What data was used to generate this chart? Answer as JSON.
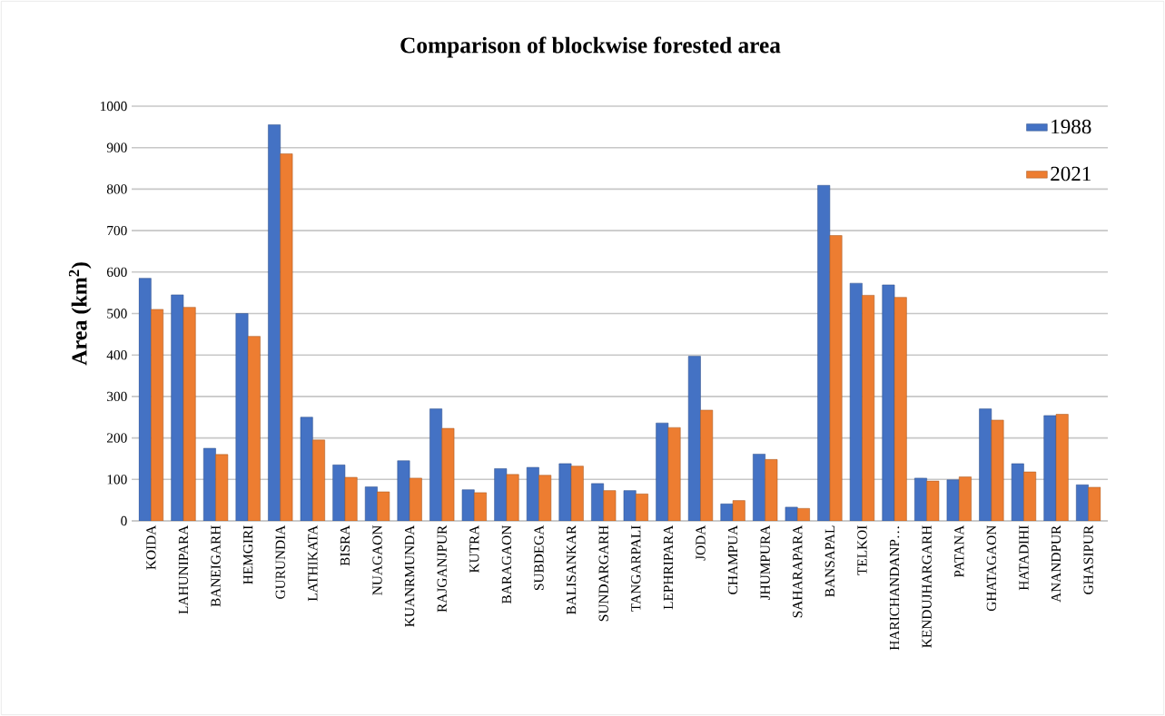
{
  "chart_data": {
    "type": "bar",
    "title": "Comparison of blockwise forested area",
    "ylabel": "**Area (km$^{2}$)**",
    "categories": [
      "KOIDA",
      "LAHUNIPARA",
      "BANEIGARH",
      "HEMGIRI",
      "GURUNDIA",
      "LATHIKATA",
      "BISRA",
      "NUAGAON",
      "KUANRMUNDA",
      "RAJGANJPUR",
      "KUTRA",
      "BARAGAON",
      "SUBDEGA",
      "BALISANKAR",
      "SUNDARGARH",
      "TANGARPALI",
      "LEPHRIPARA",
      "JODA",
      "CHAMPUA",
      "JHUMPURA",
      "SAHARAPARA",
      "BANSAPAL",
      "TELKOI",
      "HARICHANDANP…",
      "KENDUJHARGARH",
      "PATANA",
      "GHATAGAON",
      "HATADIHI",
      "ANANDPUR",
      "GHASIPUR"
    ],
    "series": [
      {
        "name": "1988",
        "color": "#4472c4",
        "values": [
          585,
          545,
          175,
          500,
          955,
          250,
          135,
          82,
          145,
          270,
          75,
          126,
          129,
          138,
          90,
          73,
          236,
          397,
          41,
          161,
          33,
          809,
          573,
          569,
          103,
          99,
          270,
          138,
          254,
          87
        ]
      },
      {
        "name": "2021",
        "color": "#ed7d31",
        "values": [
          510,
          515,
          160,
          445,
          885,
          195,
          105,
          70,
          103,
          223,
          68,
          112,
          110,
          132,
          73,
          65,
          225,
          267,
          49,
          148,
          30,
          688,
          544,
          539,
          96,
          106,
          243,
          118,
          257,
          81
        ]
      }
    ],
    "ylim": [
      0,
      1000
    ],
    "yticks": [
      0,
      100,
      200,
      300,
      400,
      500,
      600,
      700,
      800,
      900,
      1000
    ],
    "grid": "y",
    "legend": "top right"
  }
}
